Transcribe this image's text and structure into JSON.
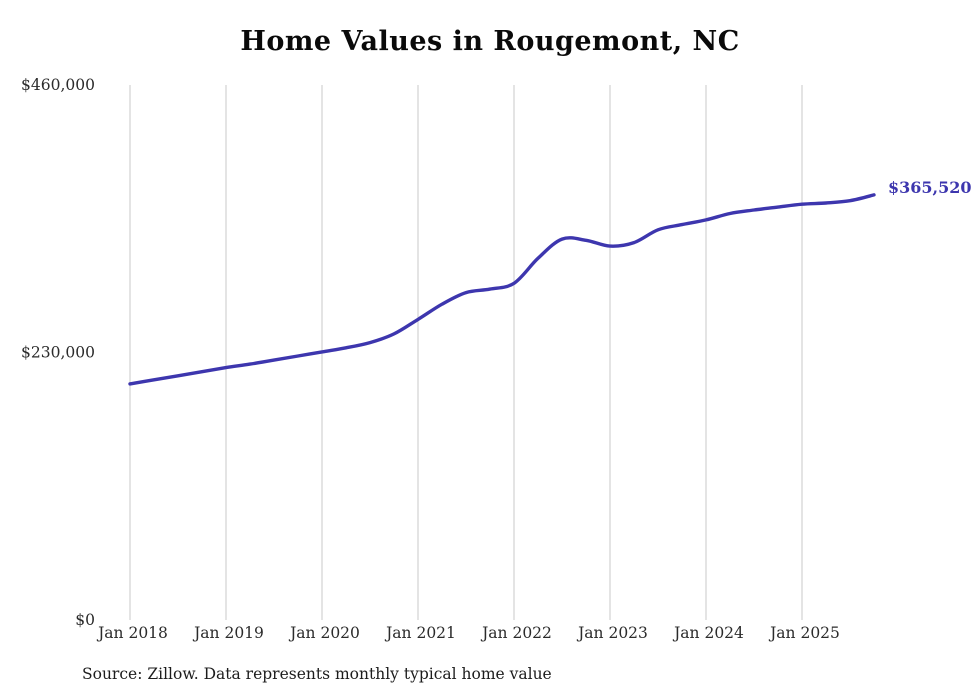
{
  "page": {
    "title": "Home Values in Rougemont, NC",
    "source_note": "Source: Zillow. Data represents monthly typical home value"
  },
  "colors": {
    "line": "#3d36ae",
    "grid": "#c9c9c9",
    "tick_text": "#2b2b2b",
    "end_label": "#3d36ae",
    "title": "#0a0a0a"
  },
  "chart_data": {
    "type": "line",
    "title": "Home Values in Rougemont, NC",
    "xlabel": "",
    "ylabel": "",
    "grid": "vertical",
    "legend": "none",
    "ylim": [
      0,
      460000
    ],
    "months_between_points": 3,
    "months_between_xticks": 12,
    "yticks": [
      {
        "value": 0,
        "label": "$0"
      },
      {
        "value": 230000,
        "label": "$230,000"
      },
      {
        "value": 460000,
        "label": "$460,000"
      }
    ],
    "xticks": [
      "Jan 2018",
      "Jan 2019",
      "Jan 2020",
      "Jan 2021",
      "Jan 2022",
      "Jan 2023",
      "Jan 2024",
      "Jan 2025"
    ],
    "x": [
      "Jan 2018",
      "Apr 2018",
      "Jul 2018",
      "Oct 2018",
      "Jan 2019",
      "Apr 2019",
      "Jul 2019",
      "Oct 2019",
      "Jan 2020",
      "Apr 2020",
      "Jul 2020",
      "Oct 2020",
      "Jan 2021",
      "Apr 2021",
      "Jul 2021",
      "Oct 2021",
      "Jan 2022",
      "Apr 2022",
      "Jul 2022",
      "Oct 2022",
      "Jan 2023",
      "Apr 2023",
      "Jul 2023",
      "Oct 2023",
      "Jan 2024",
      "Apr 2024",
      "Jul 2024",
      "Oct 2024",
      "Jan 2025",
      "Apr 2025",
      "Jul 2025",
      "Oct 2025"
    ],
    "series": [
      {
        "name": "Typical home value",
        "values": [
          203000,
          206500,
          210000,
          213500,
          217000,
          220000,
          223500,
          227000,
          230500,
          234000,
          238500,
          246000,
          258500,
          271500,
          281500,
          284500,
          289500,
          311000,
          327500,
          326500,
          321500,
          324500,
          335500,
          340000,
          344000,
          349500,
          352500,
          355000,
          357500,
          358500,
          360500,
          365520
        ]
      }
    ],
    "end_label": "$365,520"
  }
}
